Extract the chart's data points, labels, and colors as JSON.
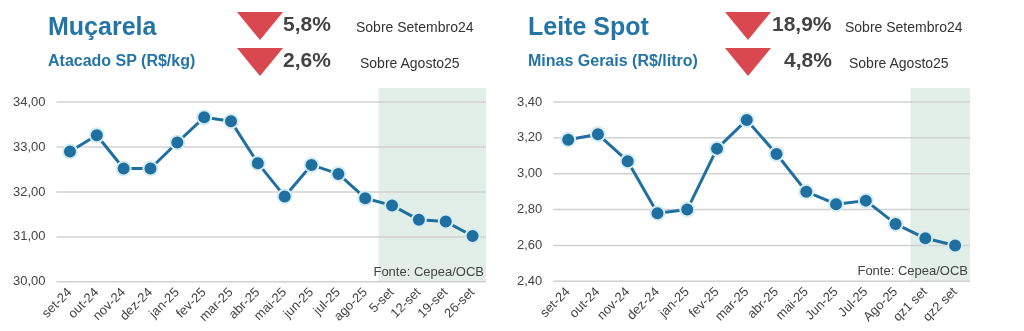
{
  "chart_data": [
    {
      "type": "line",
      "title": "Muçarela",
      "subtitle": "Atacado SP (R$/kg)",
      "annotations": [
        "5,8%",
        "Sobre Setembro24",
        "2,6%",
        "Sobre Agosto25",
        "Fonte: Cepea/OCB"
      ],
      "categories": [
        "set-24",
        "out-24",
        "nov-24",
        "dez-24",
        "jan-25",
        "fev-25",
        "mar-25",
        "abr-25",
        "mai-25",
        "jun-25",
        "jul-25",
        "ago-25",
        "5-set",
        "12-set",
        "19-set",
        "26-set"
      ],
      "series": [
        {
          "color": "#1f6fa0",
          "values": [
            32.9,
            33.26,
            32.52,
            32.52,
            33.1,
            33.66,
            33.57,
            32.64,
            31.9,
            32.6,
            32.4,
            31.86,
            31.7,
            31.38,
            31.34,
            31.02
          ]
        }
      ],
      "ylim": [
        30,
        34
      ],
      "yticks": [
        {
          "value": 30,
          "label": "30,00"
        },
        {
          "value": 31,
          "label": "31,00"
        },
        {
          "value": 32,
          "label": "32,00"
        },
        {
          "value": 33,
          "label": "33,00"
        },
        {
          "value": 34,
          "label": "34,00"
        }
      ],
      "bands": [
        {
          "axis": "x",
          "from": "5-set",
          "to": "26-set",
          "color": "#e2efe8"
        }
      ],
      "grid": "y",
      "legend": false,
      "marker": "circle",
      "line_style": "solid"
    },
    {
      "type": "line",
      "title": "Leite Spot",
      "subtitle": "Minas Gerais (R$/litro)",
      "annotations": [
        "18,9%",
        "Sobre Setembro24",
        "4,8%",
        "Sobre Agosto25",
        "Fonte: Cepea/OCB"
      ],
      "categories": [
        "set-24",
        "out-24",
        "nov-24",
        "dez-24",
        "jan-25",
        "fev-25",
        "mar-25",
        "abr-25",
        "mai-25",
        "Jun-25",
        "Jul-25",
        "Ago-25",
        "qz1 set",
        "qz2 set"
      ],
      "series": [
        {
          "color": "#1f6fa0",
          "values": [
            3.19,
            3.22,
            3.07,
            2.78,
            2.8,
            3.14,
            3.3,
            3.11,
            2.9,
            2.83,
            2.85,
            2.72,
            2.64,
            2.6
          ]
        }
      ],
      "ylim": [
        2.4,
        3.4
      ],
      "yticks": [
        {
          "value": 2.4,
          "label": "2,40"
        },
        {
          "value": 2.6,
          "label": "2,60"
        },
        {
          "value": 2.8,
          "label": "2,80"
        },
        {
          "value": 3.0,
          "label": "3,00"
        },
        {
          "value": 3.2,
          "label": "3,20"
        },
        {
          "value": 3.4,
          "label": "3,40"
        }
      ],
      "bands": [
        {
          "axis": "x",
          "from": "qz1 set",
          "to": "qz2 set",
          "color": "#e2efe8"
        }
      ],
      "grid": "y",
      "legend": false,
      "marker": "circle",
      "line_style": "solid"
    }
  ]
}
